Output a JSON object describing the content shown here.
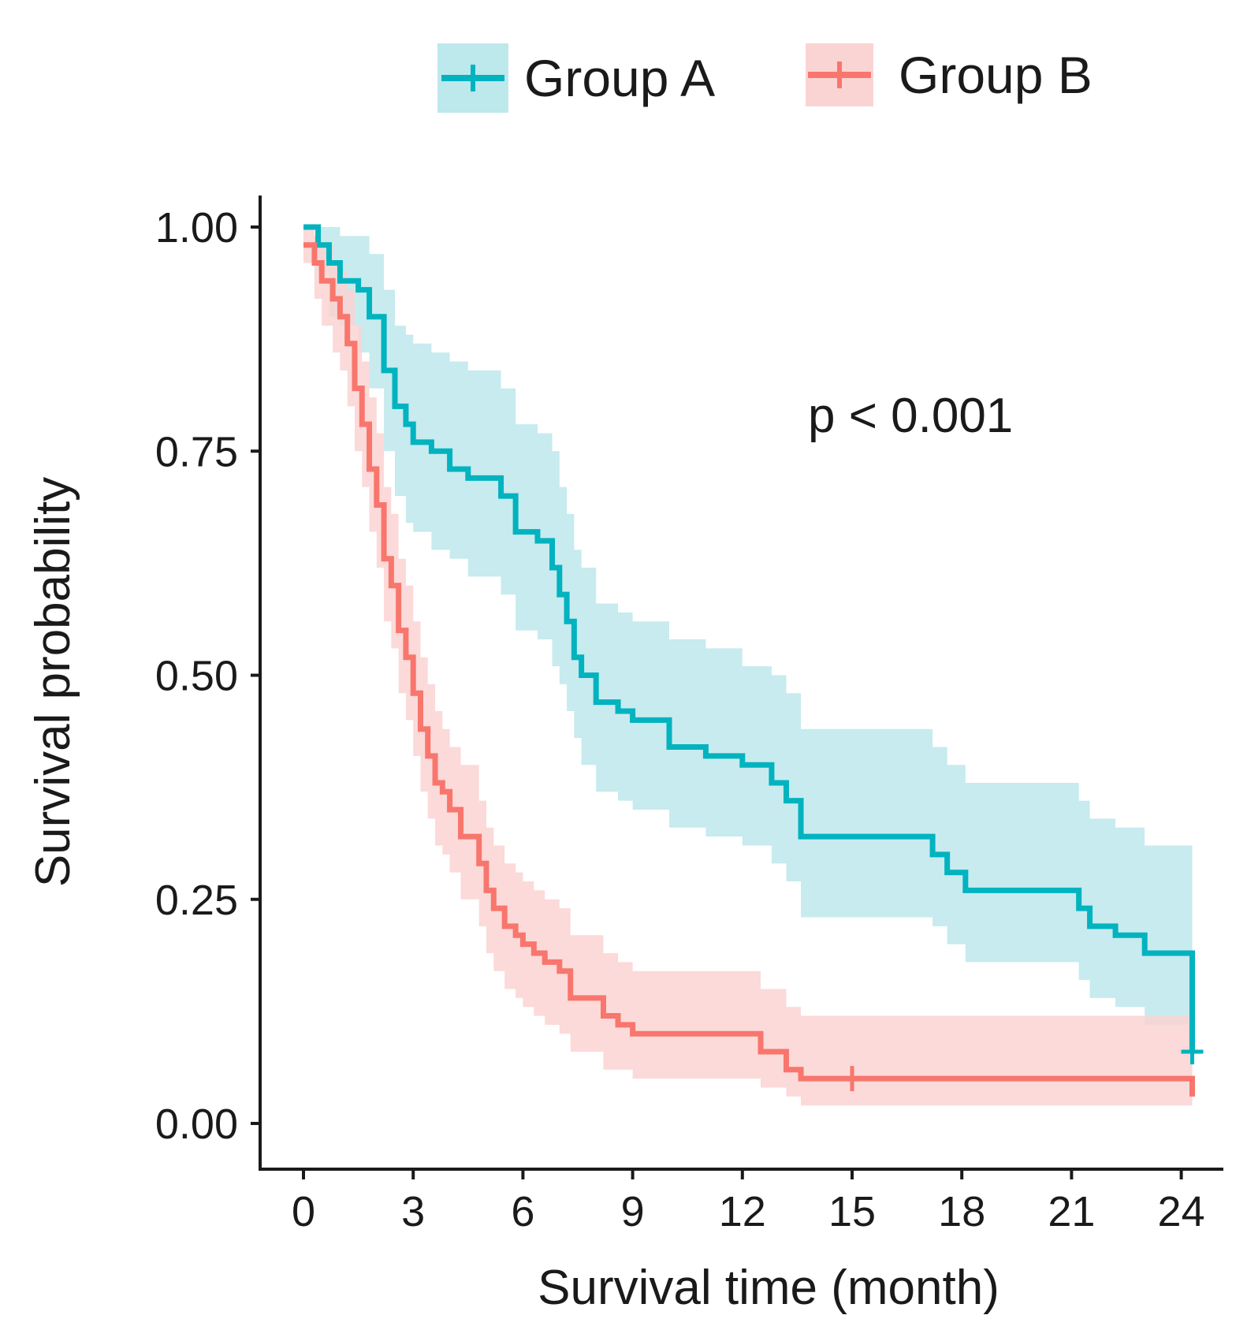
{
  "chart_data": {
    "type": "line",
    "subtype": "kaplan-meier",
    "title": "",
    "xlabel": "Survival time (month)",
    "ylabel": "Survival probability",
    "xlim": [
      0,
      24.5
    ],
    "ylim": [
      0,
      1
    ],
    "xticks": [
      0,
      3,
      6,
      9,
      12,
      15,
      18,
      21,
      24
    ],
    "yticks": [
      0.0,
      0.25,
      0.5,
      0.75,
      1.0
    ],
    "xtick_labels": [
      "0",
      "3",
      "6",
      "9",
      "12",
      "15",
      "18",
      "21",
      "24"
    ],
    "ytick_labels": [
      "0.00",
      "0.25",
      "0.50",
      "0.75",
      "1.00"
    ],
    "grid": false,
    "legend_position": "top",
    "annotation": "p < 0.001",
    "series": [
      {
        "name": "Group A",
        "color": "#00B3BF",
        "band_color": "#BDE8EC",
        "x": [
          0,
          0.4,
          0.7,
          1.0,
          1.5,
          1.8,
          2.2,
          2.5,
          2.8,
          3.0,
          3.5,
          4.0,
          4.5,
          5.4,
          5.8,
          6.4,
          6.8,
          7.0,
          7.2,
          7.4,
          7.6,
          8.0,
          8.6,
          9.0,
          10.0,
          11.0,
          12.0,
          12.8,
          13.2,
          13.6,
          17.2,
          17.6,
          18.1,
          21.2,
          21.5,
          22.2,
          23.0,
          24.3
        ],
        "y": [
          1.0,
          0.98,
          0.96,
          0.94,
          0.93,
          0.9,
          0.84,
          0.8,
          0.78,
          0.76,
          0.75,
          0.73,
          0.72,
          0.7,
          0.66,
          0.65,
          0.62,
          0.59,
          0.56,
          0.52,
          0.5,
          0.47,
          0.46,
          0.45,
          0.42,
          0.41,
          0.4,
          0.38,
          0.36,
          0.32,
          0.3,
          0.28,
          0.26,
          0.24,
          0.22,
          0.21,
          0.19,
          0.08
        ],
        "lower": [
          1.0,
          0.95,
          0.9,
          0.89,
          0.86,
          0.82,
          0.75,
          0.7,
          0.67,
          0.66,
          0.64,
          0.63,
          0.61,
          0.59,
          0.55,
          0.54,
          0.51,
          0.49,
          0.46,
          0.43,
          0.4,
          0.37,
          0.36,
          0.35,
          0.33,
          0.32,
          0.31,
          0.29,
          0.27,
          0.23,
          0.22,
          0.2,
          0.18,
          0.16,
          0.14,
          0.13,
          0.11,
          0.08
        ],
        "upper": [
          1.0,
          1.0,
          1.0,
          0.99,
          0.99,
          0.97,
          0.93,
          0.89,
          0.88,
          0.87,
          0.86,
          0.85,
          0.84,
          0.82,
          0.78,
          0.77,
          0.75,
          0.71,
          0.68,
          0.64,
          0.62,
          0.58,
          0.57,
          0.56,
          0.54,
          0.53,
          0.51,
          0.5,
          0.48,
          0.44,
          0.42,
          0.4,
          0.38,
          0.36,
          0.34,
          0.33,
          0.31,
          0.08
        ],
        "censor_x": [
          24.3
        ],
        "censor_y": [
          0.08
        ]
      },
      {
        "name": "Group B",
        "color": "#F8766D",
        "band_color": "#FAD4D2",
        "x": [
          0,
          0.3,
          0.5,
          0.8,
          1.0,
          1.2,
          1.4,
          1.6,
          1.8,
          2.0,
          2.2,
          2.4,
          2.6,
          2.8,
          3.0,
          3.2,
          3.4,
          3.6,
          3.8,
          4.0,
          4.3,
          4.8,
          5.0,
          5.2,
          5.5,
          5.8,
          6.0,
          6.3,
          6.6,
          7.0,
          7.3,
          8.2,
          8.6,
          9.0,
          12.5,
          13.2,
          13.6,
          24.3
        ],
        "y": [
          0.98,
          0.96,
          0.94,
          0.92,
          0.9,
          0.87,
          0.82,
          0.78,
          0.73,
          0.69,
          0.63,
          0.6,
          0.55,
          0.52,
          0.48,
          0.44,
          0.41,
          0.38,
          0.37,
          0.35,
          0.32,
          0.29,
          0.26,
          0.24,
          0.22,
          0.21,
          0.2,
          0.19,
          0.18,
          0.17,
          0.14,
          0.12,
          0.11,
          0.1,
          0.08,
          0.06,
          0.05,
          0.03
        ],
        "lower": [
          0.96,
          0.92,
          0.89,
          0.86,
          0.84,
          0.8,
          0.75,
          0.71,
          0.66,
          0.62,
          0.56,
          0.53,
          0.48,
          0.45,
          0.41,
          0.37,
          0.34,
          0.31,
          0.3,
          0.28,
          0.25,
          0.22,
          0.19,
          0.17,
          0.15,
          0.14,
          0.13,
          0.12,
          0.11,
          0.1,
          0.08,
          0.06,
          0.06,
          0.05,
          0.04,
          0.03,
          0.02,
          0.02
        ],
        "upper": [
          1.0,
          0.99,
          0.98,
          0.96,
          0.95,
          0.93,
          0.89,
          0.85,
          0.81,
          0.77,
          0.71,
          0.68,
          0.63,
          0.6,
          0.56,
          0.52,
          0.49,
          0.46,
          0.44,
          0.42,
          0.4,
          0.36,
          0.33,
          0.31,
          0.29,
          0.28,
          0.27,
          0.26,
          0.25,
          0.24,
          0.21,
          0.19,
          0.18,
          0.17,
          0.15,
          0.13,
          0.12,
          0.03
        ],
        "censor_x": [
          15.0
        ],
        "censor_y": [
          0.05
        ]
      }
    ]
  }
}
